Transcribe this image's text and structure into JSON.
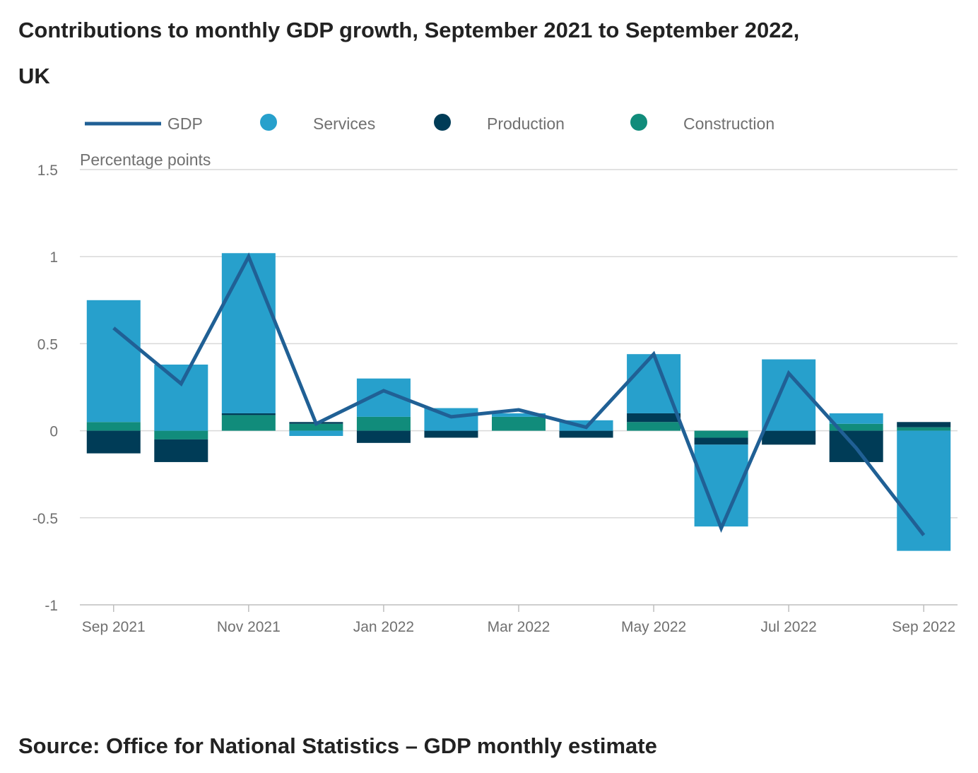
{
  "title": "Contributions to monthly GDP growth, September 2021 to September 2022, UK",
  "source": "Source: Office for National Statistics – GDP monthly estimate",
  "colors": {
    "gdp": "#206095",
    "services": "#27a0cc",
    "production": "#003c57",
    "construction": "#118c7b",
    "grid": "#d9d9d9",
    "axis": "#bebebe",
    "tick_text": "#707070",
    "legend_text": "#707070"
  },
  "chart_data": {
    "type": "bar",
    "stacked": true,
    "title": "Contributions to monthly GDP growth, September 2021 to September 2022, UK",
    "ylabel": "Percentage points",
    "xlabel": "",
    "ylim": [
      -1,
      1.5
    ],
    "yticks": [
      1.5,
      1,
      0.5,
      0,
      -0.5,
      -1
    ],
    "ytick_labels": [
      "1.5",
      "1",
      "0.5",
      "0",
      "-0.5",
      "-1"
    ],
    "grid": true,
    "legend_position": "top",
    "categories": [
      "Sep 2021",
      "Oct 2021",
      "Nov 2021",
      "Dec 2021",
      "Jan 2022",
      "Feb 2022",
      "Mar 2022",
      "Apr 2022",
      "May 2022",
      "Jun 2022",
      "Jul 2022",
      "Aug 2022",
      "Sep 2022"
    ],
    "xtick_labels": [
      "Sep 2021",
      "",
      "Nov 2021",
      "",
      "Jan 2022",
      "",
      "Mar 2022",
      "",
      "May 2022",
      "",
      "Jul 2022",
      "",
      "Sep 2022"
    ],
    "series": [
      {
        "name": "Services",
        "kind": "bar",
        "values": [
          0.7,
          0.38,
          0.92,
          -0.03,
          0.22,
          0.13,
          0.02,
          0.06,
          0.34,
          -0.47,
          0.41,
          0.06,
          -0.69
        ]
      },
      {
        "name": "Production",
        "kind": "bar",
        "values": [
          -0.13,
          -0.13,
          0.01,
          0.01,
          -0.07,
          -0.04,
          0.0,
          -0.04,
          0.05,
          -0.04,
          -0.08,
          -0.18,
          0.03
        ]
      },
      {
        "name": "Construction",
        "kind": "bar",
        "values": [
          0.05,
          -0.05,
          0.09,
          0.04,
          0.08,
          0.0,
          0.08,
          0.0,
          0.05,
          -0.04,
          0.0,
          0.04,
          0.02
        ]
      },
      {
        "name": "GDP",
        "kind": "line",
        "values": [
          0.59,
          0.27,
          1.0,
          0.04,
          0.23,
          0.08,
          0.12,
          0.02,
          0.44,
          -0.56,
          0.33,
          -0.1,
          -0.6
        ]
      }
    ]
  }
}
